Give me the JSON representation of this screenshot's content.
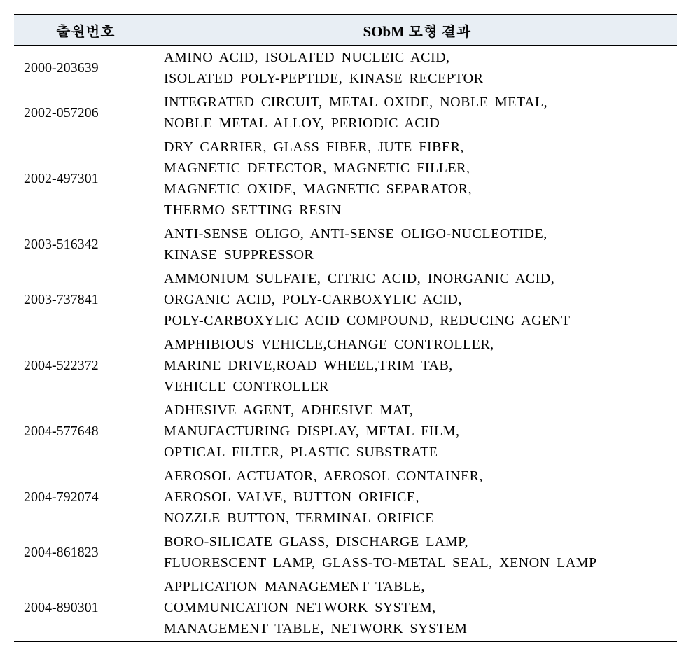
{
  "table": {
    "headers": {
      "app_no": "출원번호",
      "result": "SObM 모형 결과"
    },
    "rows": [
      {
        "app_no": "2000-203639",
        "result": "AMINO ACID, ISOLATED NUCLEIC ACID,<br>ISOLATED POLY-PEPTIDE, KINASE RECEPTOR"
      },
      {
        "app_no": "2002-057206",
        "result": "INTEGRATED CIRCUIT, METAL OXIDE, NOBLE METAL,<br>NOBLE METAL ALLOY, PERIODIC ACID"
      },
      {
        "app_no": "2002-497301",
        "result": "DRY CARRIER, GLASS FIBER, JUTE FIBER,<br>MAGNETIC DETECTOR, MAGNETIC  FILLER,<br>MAGNETIC OXIDE, MAGNETIC SEPARATOR,<br>THERMO SETTING RESIN"
      },
      {
        "app_no": "2003-516342",
        "result": "ANTI-SENSE OLIGO, ANTI-SENSE OLIGO-NUCLEOTIDE,<br>KINASE SUPPRESSOR"
      },
      {
        "app_no": "2003-737841",
        "result": "AMMONIUM SULFATE, CITRIC ACID, INORGANIC ACID,<br>ORGANIC ACID, POLY-CARBOXYLIC  ACID,<br>POLY-CARBOXYLIC ACID COMPOUND, REDUCING AGENT"
      },
      {
        "app_no": "2004-522372",
        "result": "AMPHIBIOUS VEHICLE,CHANGE CONTROLLER,<br>MARINE DRIVE,ROAD WHEEL,TRIM TAB,<br>VEHICLE CONTROLLER"
      },
      {
        "app_no": "2004-577648",
        "result": "ADHESIVE AGENT, ADHESIVE MAT,<br>MANUFACTURING DISPLAY, METAL FILM,<br>OPTICAL FILTER, PLASTIC SUBSTRATE"
      },
      {
        "app_no": "2004-792074",
        "result": "AEROSOL ACTUATOR, AEROSOL CONTAINER,<br>AEROSOL VALVE, BUTTON ORIFICE,<br>NOZZLE BUTTON, TERMINAL ORIFICE"
      },
      {
        "app_no": "2004-861823",
        "result": "BORO-SILICATE GLASS, DISCHARGE LAMP,<br>FLUORESCENT LAMP, GLASS-TO-METAL SEAL, XENON LAMP"
      },
      {
        "app_no": "2004-890301",
        "result": "APPLICATION MANAGEMENT TABLE,<br>COMMUNICATION NETWORK SYSTEM,<br>MANAGEMENT TABLE, NETWORK SYSTEM"
      }
    ]
  }
}
